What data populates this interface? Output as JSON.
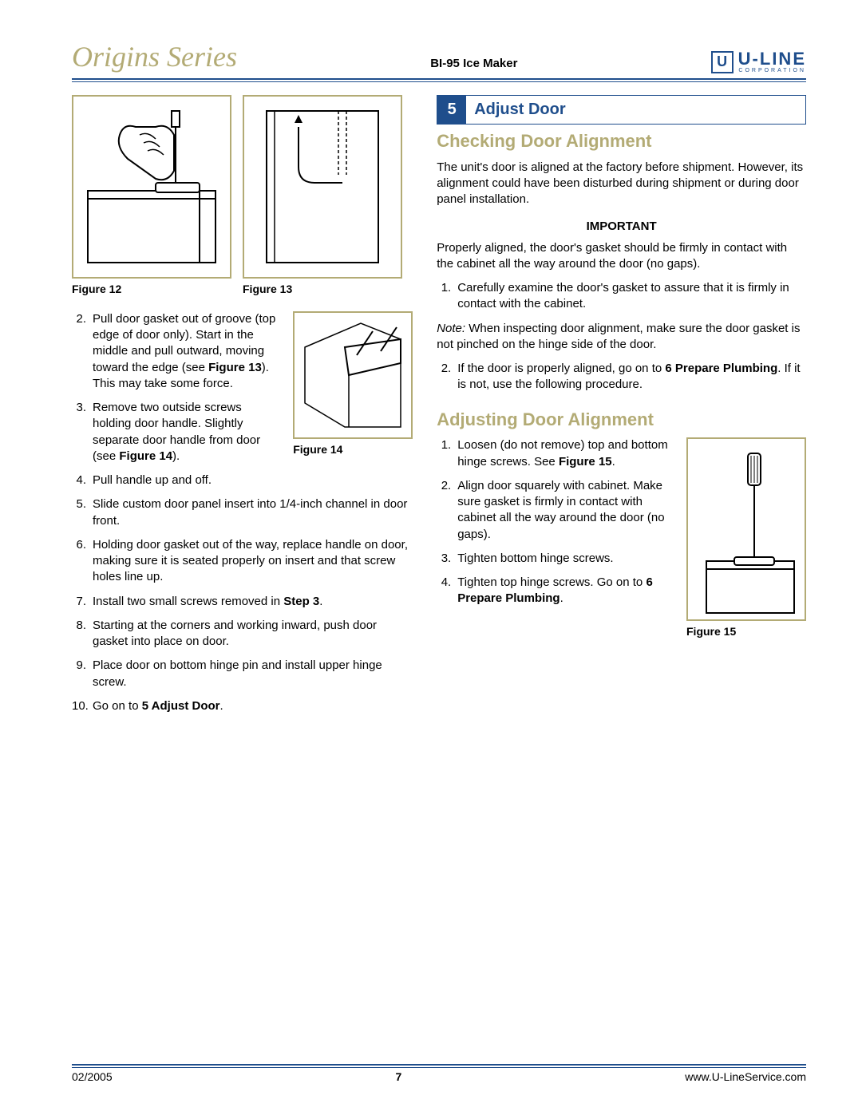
{
  "header": {
    "series": "Origins Series",
    "product": "BI-95 Ice Maker",
    "logo_letter": "U",
    "logo_main": "U-LINE",
    "logo_sub": "CORPORATION"
  },
  "left": {
    "fig12": "Figure 12",
    "fig13": "Figure 13",
    "fig14": "Figure 14",
    "step2": "Pull door gasket out of groove (top edge of door only). Start in the middle and pull outward, moving toward the edge (see <b>Figure 13</b>). This may take some force.",
    "step3": "Remove two outside screws holding door handle. Slightly separate door handle from door (see <b>Figure 14</b>).",
    "step4": "Pull handle up and off.",
    "step5": "Slide custom door panel insert into 1/4-inch channel in door front.",
    "step6": "Holding door gasket out of the way, replace handle on door, making sure it is seated properly on insert and that screw holes line up.",
    "step7": "Install two small screws removed in <b>Step 3</b>.",
    "step8": "Starting at the corners and working inward, push door gasket into place on door.",
    "step9": "Place door on bottom hinge pin and install upper hinge screw.",
    "step10": "Go on to <b>5 Adjust Door</b>."
  },
  "right": {
    "section_num": "5",
    "section_label": "Adjust Door",
    "checking_head": "Checking Door Alignment",
    "checking_p": "The unit's door is aligned at the factory before shipment. However, its alignment could have been disturbed during shipment or during door panel installation.",
    "important": "IMPORTANT",
    "important_p": "Properly aligned, the door's gasket should be firmly in contact with the cabinet all the way around the door (no gaps).",
    "check1": "Carefully examine the door's gasket to assure that it is firmly in contact with the cabinet.",
    "note": "<i>Note:</i> When inspecting door alignment, make sure the door gasket is not pinched on the hinge side of the door.",
    "check2": "If the door is properly aligned, go on to <b>6 Prepare Plumbing</b>. If it is not, use the following procedure.",
    "adjust_head": "Adjusting Door Alignment",
    "adj1": "Loosen (do not remove) top and bottom hinge screws. See <b>Figure 15</b>.",
    "adj2": "Align door squarely with cabinet. Make sure gasket is firmly in contact with cabinet all the way around the door (no gaps).",
    "adj3": "Tighten bottom hinge screws.",
    "adj4": "Tighten top hinge screws. Go on to <b>6 Prepare Plumbing</b>.",
    "fig15": "Figure 15"
  },
  "footer": {
    "date": "02/2005",
    "page": "7",
    "url": "www.U-LineService.com"
  },
  "colors": {
    "brand_blue": "#1f4e8c",
    "accent_tan": "#b3ab75"
  }
}
